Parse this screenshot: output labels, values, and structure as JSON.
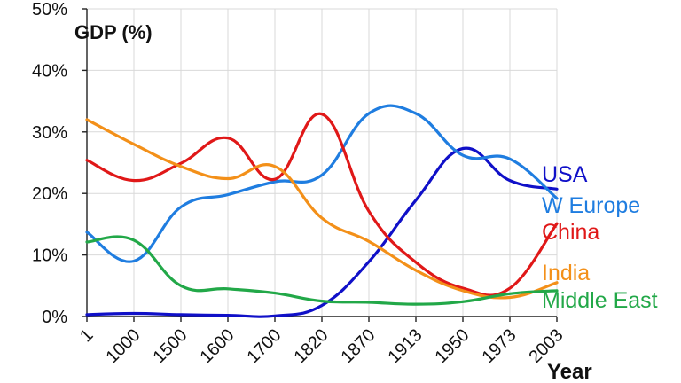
{
  "chart_data": {
    "type": "line",
    "title": "GDP (%)",
    "xlabel": "Year",
    "ylabel": "",
    "categories": [
      "1",
      "1000",
      "1500",
      "1600",
      "1700",
      "1820",
      "1870",
      "1913",
      "1950",
      "1973",
      "2003"
    ],
    "y_ticks": [
      "0%",
      "10%",
      "20%",
      "30%",
      "40%",
      "50%"
    ],
    "ylim": [
      0,
      50
    ],
    "grid": true,
    "legend": "right, labels at line ends",
    "series": [
      {
        "name": "USA",
        "color": "#1010c8",
        "values": [
          0.3,
          0.5,
          0.3,
          0.2,
          0.1,
          1.8,
          8.9,
          18.9,
          27.3,
          22.1,
          20.7
        ]
      },
      {
        "name": "W Europe",
        "color": "#1f7de0",
        "values": [
          13.7,
          9.0,
          17.8,
          19.8,
          21.9,
          23.0,
          33.0,
          33.0,
          26.2,
          25.6,
          19.2
        ]
      },
      {
        "name": "China",
        "color": "#e01818",
        "values": [
          25.4,
          22.1,
          24.9,
          29.0,
          22.3,
          32.9,
          17.1,
          8.8,
          4.6,
          4.6,
          15.1
        ]
      },
      {
        "name": "India",
        "color": "#f39019",
        "values": [
          32.0,
          28.0,
          24.4,
          22.4,
          24.4,
          16.0,
          12.2,
          7.5,
          4.2,
          3.1,
          5.5
        ]
      },
      {
        "name": "Middle East",
        "color": "#22a848",
        "values": [
          12.1,
          12.4,
          5.0,
          4.5,
          3.8,
          2.5,
          2.3,
          2.0,
          2.4,
          3.7,
          4.2
        ]
      }
    ]
  }
}
